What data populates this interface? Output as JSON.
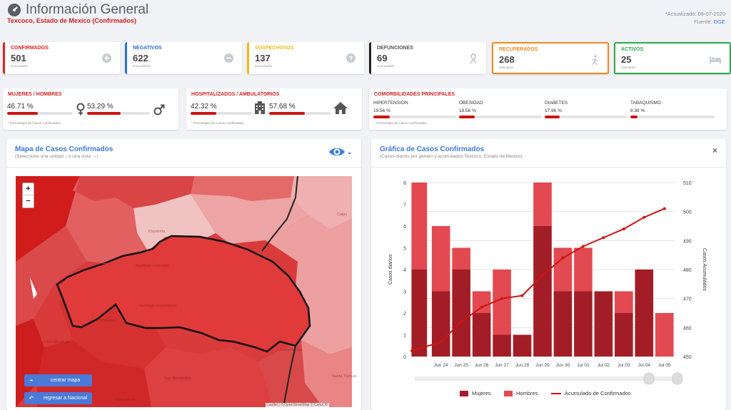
{
  "header": {
    "title": "Información General",
    "subtitle": "Texcoco, Estado de Mexico (Confirmados)",
    "updated": "*Actualizado: 08-07-2020",
    "source_label": "Fuente:",
    "source_link": "DGE"
  },
  "colors": {
    "confirmados": "#e02020",
    "negativos": "#2e6fd8",
    "sospechosos": "#f2b818",
    "defunciones": "#222222",
    "recuperados": "#f08a1e",
    "activos": "#2aa84a",
    "bar_dark": "#a31d26",
    "bar_light": "#e34950",
    "line": "#cc1414"
  },
  "stats": [
    {
      "label": "CONFIRMADOS",
      "value": "501",
      "sub": "acumulados",
      "icon": "plus-circle-icon"
    },
    {
      "label": "NEGATIVOS",
      "value": "622",
      "sub": "acumulados",
      "icon": "minus-circle-icon"
    },
    {
      "label": "SOSPECHOSOS",
      "value": "137",
      "sub": "acumulados",
      "icon": "question-circle-icon"
    },
    {
      "label": "DEFUNCIONES",
      "value": "69",
      "sub": "acumulados",
      "icon": "ribbon-icon"
    },
    {
      "label": "RECUPERADOS",
      "value": "268",
      "sub": "estimados",
      "icon": "walking-icon"
    },
    {
      "label": "ACTIVOS",
      "value": "25",
      "sub": "estimados",
      "icon": "bed-icon"
    }
  ],
  "gender": {
    "label": "MUJERES / HOMBRES",
    "women_pct": "46.71 %",
    "men_pct": "53.29 %",
    "women_value": 46.71,
    "men_value": 53.29,
    "note": "* Porcentajes de Casos Confirmados"
  },
  "hospital": {
    "label": "HOSPITALIZADOS / AMBULATORIOS",
    "hosp_pct": "42.32 %",
    "amb_pct": "57.68 %",
    "hosp_value": 42.32,
    "amb_value": 57.68,
    "note": "* Porcentajes de Casos Confirmados"
  },
  "comorbidities": {
    "label": "COMORBILIDADES PRINCIPALES",
    "note": "* Porcentajes de Casos Confirmados",
    "items": [
      {
        "name": "HIPERTENSION",
        "pct": "19.56 %",
        "value": 19.56
      },
      {
        "name": "OBESIDAD",
        "pct": "18.56 %",
        "value": 18.56
      },
      {
        "name": "DIABETES",
        "pct": "17.96 %",
        "value": 17.96
      },
      {
        "name": "TABAQUISMO",
        "pct": "8.38 %",
        "value": 8.38
      }
    ]
  },
  "map_panel": {
    "title": "Mapa de Casos Confirmados",
    "subtitle": "(Seleccione una unidad ↓ o una vista →)",
    "zoom_in": "+",
    "zoom_out": "−",
    "center_btn": "centrar mapa",
    "back_btn": "regresar a Nacional",
    "attribution": "Leaflet | © OpenStreetMap © CartoDB",
    "labels": [
      "Papalotla",
      "Santiago Cuautlalpan",
      "Santiago Chimalpa",
      "Calpu",
      "Cuauhtemoc",
      "San Bernardino",
      "Santa Tlahuac",
      "Chiconcuac",
      "Chimalhuacan",
      "Tlalpizahuac"
    ]
  },
  "chart_panel": {
    "title": "Gráfica de Casos Confirmados",
    "subtitle": "(Casos diarios por género y acumulados Texcoco, Estado de Mexico)",
    "close": "×"
  },
  "chart_data": {
    "type": "bar",
    "categories": [
      "Jun 24",
      "Jun 25",
      "Jun 26",
      "Jun 27",
      "Jun 28",
      "Jun 29",
      "Jun 30",
      "Jul 01",
      "Jul 02",
      "Jul 03",
      "Jul 04",
      "Jul 05"
    ],
    "series": [
      {
        "name": "Mujeres",
        "type": "bar",
        "stack": "casos",
        "values": [
          3,
          4,
          2,
          1,
          1,
          6,
          3,
          3,
          3,
          2,
          4,
          0
        ]
      },
      {
        "name": "Hombres",
        "type": "bar",
        "stack": "casos",
        "values": [
          3,
          1,
          1,
          3,
          0,
          2,
          2,
          2,
          0,
          1,
          0,
          2
        ]
      },
      {
        "name": "Acumulado de Confirmados",
        "type": "line",
        "axis": "right",
        "values": [
          455,
          462,
          467,
          470,
          471,
          478,
          484,
          488,
          491,
          494,
          498,
          501
        ]
      }
    ],
    "extra_bar": {
      "category_index": -1,
      "mujeres": 4,
      "hombres": 4
    },
    "ylabel": "Casos diarios",
    "y2label": "Casos Acumulados",
    "ylim": [
      0,
      8
    ],
    "y2lim": [
      450,
      510
    ],
    "y_ticks": [
      "0",
      "1",
      "2",
      "3",
      "4",
      "5",
      "6",
      "7",
      "8"
    ],
    "y2_ticks": [
      "450",
      "460",
      "470",
      "480",
      "490",
      "500",
      "510"
    ],
    "legend": [
      "Mujeres",
      "Hombres",
      "Acumulado de Confirmados"
    ]
  }
}
